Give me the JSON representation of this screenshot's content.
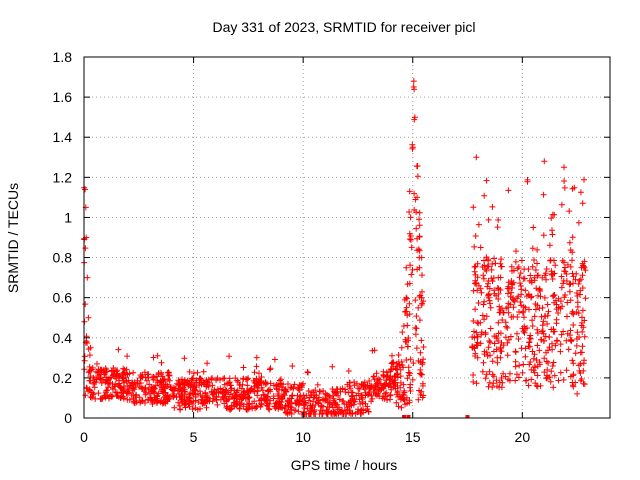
{
  "chart_data": {
    "type": "scatter",
    "title": "Day 331 of 2023, SRMTID for receiver picl",
    "xlabel": "GPS time / hours",
    "ylabel": "SRMTID / TECUs",
    "xlim": [
      0,
      24
    ],
    "ylim": [
      0,
      1.8
    ],
    "xticks": [
      0,
      5,
      10,
      15,
      20
    ],
    "xtick_labels": [
      "0",
      "5",
      "10",
      "15",
      "20"
    ],
    "yticks": [
      0,
      0.2,
      0.4,
      0.6,
      0.8,
      1,
      1.2,
      1.4,
      1.6,
      1.8
    ],
    "ytick_labels": [
      "0",
      "0.2",
      "0.4",
      "0.6",
      "0.8",
      "1",
      "1.2",
      "1.4",
      "1.6",
      "1.8"
    ],
    "grid": true,
    "marker": "plus",
    "color": "#ff0000",
    "series": [
      {
        "name": "SRMTID",
        "segments": [
          {
            "x_start": 0.0,
            "x_end": 0.5,
            "y_range": [
              0.1,
              1.15
            ],
            "description_points": [
              [
                0.05,
                1.14
              ],
              [
                0.08,
                1.05
              ],
              [
                0.1,
                0.9
              ],
              [
                0.15,
                0.7
              ],
              [
                0.2,
                0.5
              ],
              [
                0.3,
                0.35
              ],
              [
                0.4,
                0.25
              ]
            ]
          },
          {
            "x_start": 0.5,
            "x_end": 14.2,
            "y_range": [
              0.02,
              0.36
            ]
          },
          {
            "x_start": 14.2,
            "x_end": 15.5,
            "y_range": [
              0.0,
              1.7
            ],
            "description_points": [
              [
                14.5,
                0.35
              ],
              [
                14.7,
                0.6
              ],
              [
                14.9,
                1.0
              ],
              [
                15.0,
                1.35
              ],
              [
                15.05,
                1.68
              ],
              [
                15.1,
                1.5
              ],
              [
                15.2,
                1.1
              ],
              [
                15.3,
                0.8
              ],
              [
                15.4,
                0.6
              ]
            ]
          },
          {
            "x_start": 17.7,
            "x_end": 22.9,
            "y_range": [
              0.1,
              1.3
            ],
            "description_points": [
              [
                17.9,
                1.3
              ],
              [
                18.1,
                0.85
              ],
              [
                19.0,
                0.3
              ],
              [
                20.5,
                0.95
              ],
              [
                21.0,
                1.28
              ],
              [
                21.9,
                1.25
              ],
              [
                22.5,
                0.12
              ],
              [
                22.7,
                0.75
              ]
            ]
          }
        ],
        "gap_markers": [
          14.6,
          14.8,
          17.5
        ]
      }
    ]
  }
}
